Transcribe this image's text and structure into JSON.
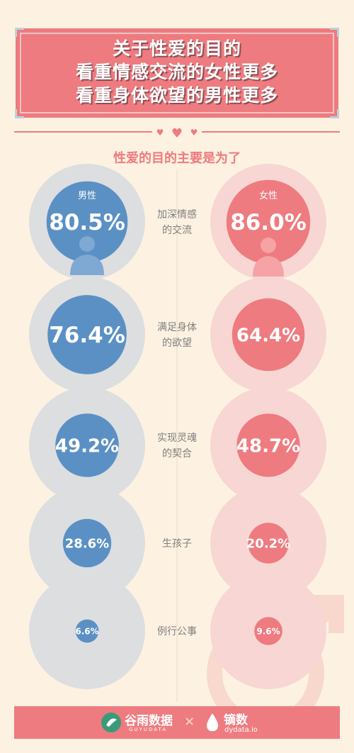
{
  "title": {
    "lines": [
      "关于性爱的目的",
      "看重情感交流的女性更多",
      "看重身体欲望的男性更多"
    ]
  },
  "chart_data": {
    "type": "bubble-comparison",
    "title": "性爱的目的主要是为了",
    "left_series": {
      "name": "男性",
      "color": "#5b90c4"
    },
    "right_series": {
      "name": "女性",
      "color": "#ee7b7f"
    },
    "categories": [
      {
        "label_lines": [
          "加深情感",
          "的交流"
        ],
        "male": 80.5,
        "female": 86.0,
        "male_label": "80.5%",
        "female_label": "86.0%"
      },
      {
        "label_lines": [
          "满足身体",
          "的欲望"
        ],
        "male": 76.4,
        "female": 64.4,
        "male_label": "76.4%",
        "female_label": "64.4%"
      },
      {
        "label_lines": [
          "实现灵魂",
          "的契合"
        ],
        "male": 49.2,
        "female": 48.7,
        "male_label": "49.2%",
        "female_label": "48.7%"
      },
      {
        "label_lines": [
          "生孩子"
        ],
        "male": 28.6,
        "female": 20.2,
        "male_label": "28.6%",
        "female_label": "20.2%"
      },
      {
        "label_lines": [
          "例行公事"
        ],
        "male": 6.6,
        "female": 9.6,
        "male_label": "6.6%",
        "female_label": "9.6%"
      }
    ]
  },
  "footer": {
    "brand_left": "谷雨数据",
    "brand_left_sub": "GUYUDATA",
    "separator": "×",
    "brand_right": "镝数",
    "brand_right_sub": "dydata.io"
  },
  "colors": {
    "background": "#fdf2e1",
    "accent": "#ee7b7f",
    "male": "#5b90c4",
    "halo_gray": "#dcdee0",
    "halo_pink": "#f7d6d3",
    "label_gray": "#7f7f7f"
  }
}
